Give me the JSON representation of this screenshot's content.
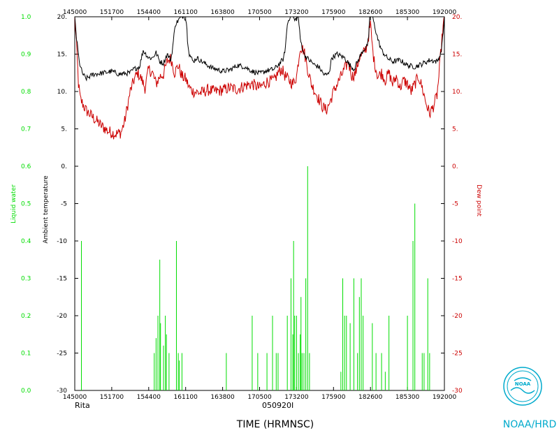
{
  "chart_data": {
    "type": "line",
    "storm": "Rita",
    "date": "050920I",
    "xlabel": "TIME (HRMNSC)",
    "credit": "NOAA/HRD",
    "logo_text": "NOAA",
    "x_ticks": [
      "145000",
      "151700",
      "154400",
      "161100",
      "163800",
      "170500",
      "173200",
      "175900",
      "182600",
      "185300",
      "192000"
    ],
    "xlim": [
      0,
      10
    ],
    "left_axis": {
      "label": "Liquid water",
      "color": "#00dd00",
      "ylim": [
        0.0,
        1.0
      ],
      "ticks": [
        "0.0",
        "0.1",
        "0.2",
        "0.3",
        "0.4",
        "0.5",
        "0.6",
        "0.7",
        "0.8",
        "0.9",
        "1.0"
      ]
    },
    "inner_left_axis": {
      "label": "Ambient temperature",
      "color": "#000000",
      "ylim": [
        -30,
        20
      ],
      "ticks": [
        "-30",
        "-25",
        "-20",
        "-15",
        "-10",
        "-5",
        "0.",
        "5.",
        "10.",
        "15.",
        "20."
      ]
    },
    "right_axis": {
      "label": "Dew point",
      "color": "#cc0000",
      "ylim": [
        -30,
        20
      ],
      "ticks": [
        "-30",
        "-25",
        "-20",
        "-15",
        "-10",
        "-5",
        "0.",
        "5.",
        "10.",
        "15.",
        "20."
      ]
    },
    "series": [
      {
        "name": "Ambient temperature",
        "color": "#000000",
        "points": [
          [
            0,
            20
          ],
          [
            0.05,
            17
          ],
          [
            0.12,
            14
          ],
          [
            0.2,
            12.5
          ],
          [
            0.3,
            11.7
          ],
          [
            0.5,
            12.3
          ],
          [
            0.8,
            12.5
          ],
          [
            1.0,
            12.7
          ],
          [
            1.2,
            12.3
          ],
          [
            1.5,
            12.5
          ],
          [
            1.6,
            13
          ],
          [
            1.75,
            13.3
          ],
          [
            1.85,
            15.5
          ],
          [
            2.0,
            14.5
          ],
          [
            2.1,
            14.5
          ],
          [
            2.2,
            15.2
          ],
          [
            2.3,
            14
          ],
          [
            2.4,
            13.8
          ],
          [
            2.5,
            15
          ],
          [
            2.6,
            14.2
          ],
          [
            2.65,
            16
          ],
          [
            2.72,
            19
          ],
          [
            2.85,
            19.8
          ],
          [
            2.95,
            20.3
          ],
          [
            3.02,
            19.3
          ],
          [
            3.05,
            17
          ],
          [
            3.1,
            15
          ],
          [
            3.2,
            14
          ],
          [
            3.3,
            14.5
          ],
          [
            3.5,
            13.8
          ],
          [
            3.7,
            13.2
          ],
          [
            4.0,
            12.7
          ],
          [
            4.2,
            12.9
          ],
          [
            4.4,
            13.5
          ],
          [
            4.6,
            13.3
          ],
          [
            4.8,
            12.7
          ],
          [
            5.0,
            12.4
          ],
          [
            5.2,
            12.8
          ],
          [
            5.4,
            13
          ],
          [
            5.55,
            13.8
          ],
          [
            5.65,
            14.4
          ],
          [
            5.7,
            16
          ],
          [
            5.75,
            19
          ],
          [
            5.85,
            20.5
          ],
          [
            5.95,
            19.5
          ],
          [
            6.05,
            20
          ],
          [
            6.1,
            17
          ],
          [
            6.2,
            15
          ],
          [
            6.3,
            14.4
          ],
          [
            6.5,
            13.5
          ],
          [
            6.6,
            13.3
          ],
          [
            6.75,
            12.2
          ],
          [
            6.85,
            12.3
          ],
          [
            6.9,
            13
          ],
          [
            6.95,
            14.5
          ],
          [
            7.1,
            15
          ],
          [
            7.3,
            14.5
          ],
          [
            7.45,
            13.5
          ],
          [
            7.55,
            13
          ],
          [
            7.7,
            14.5
          ],
          [
            7.8,
            15.5
          ],
          [
            7.9,
            16
          ],
          [
            7.95,
            17
          ],
          [
            7.98,
            20
          ],
          [
            8.03,
            20.6
          ],
          [
            8.1,
            19
          ],
          [
            8.2,
            17
          ],
          [
            8.3,
            15.5
          ],
          [
            8.45,
            14.5
          ],
          [
            8.6,
            14
          ],
          [
            8.8,
            14.2
          ],
          [
            9.0,
            13.5
          ],
          [
            9.2,
            13.3
          ],
          [
            9.4,
            13.7
          ],
          [
            9.6,
            14.2
          ],
          [
            9.8,
            14
          ],
          [
            9.9,
            15
          ],
          [
            9.95,
            17
          ],
          [
            10.0,
            20
          ]
        ]
      },
      {
        "name": "Dew point",
        "color": "#cc0000",
        "points": [
          [
            0,
            20
          ],
          [
            0.05,
            16
          ],
          [
            0.1,
            11
          ],
          [
            0.15,
            9
          ],
          [
            0.2,
            8.5
          ],
          [
            0.3,
            7.5
          ],
          [
            0.5,
            6.5
          ],
          [
            0.7,
            5.5
          ],
          [
            0.9,
            4.7
          ],
          [
            1.1,
            4.3
          ],
          [
            1.25,
            4.5
          ],
          [
            1.35,
            6
          ],
          [
            1.5,
            10
          ],
          [
            1.6,
            11.5
          ],
          [
            1.7,
            12.5
          ],
          [
            1.8,
            11.7
          ],
          [
            1.9,
            10.5
          ],
          [
            2.0,
            13
          ],
          [
            2.1,
            12.5
          ],
          [
            2.2,
            11
          ],
          [
            2.3,
            12
          ],
          [
            2.4,
            12.3
          ],
          [
            2.5,
            14
          ],
          [
            2.6,
            14.5
          ],
          [
            2.7,
            12.5
          ],
          [
            2.8,
            13.5
          ],
          [
            2.9,
            12
          ],
          [
            3.0,
            11.7
          ],
          [
            3.1,
            10.5
          ],
          [
            3.2,
            10
          ],
          [
            3.4,
            9.8
          ],
          [
            3.6,
            10.2
          ],
          [
            3.8,
            10
          ],
          [
            4.0,
            10.2
          ],
          [
            4.2,
            10.5
          ],
          [
            4.4,
            10.3
          ],
          [
            4.6,
            10.8
          ],
          [
            4.8,
            11
          ],
          [
            5.0,
            10.5
          ],
          [
            5.2,
            11.3
          ],
          [
            5.4,
            11.5
          ],
          [
            5.5,
            12.5
          ],
          [
            5.6,
            13
          ],
          [
            5.7,
            12
          ],
          [
            5.8,
            11.5
          ],
          [
            5.9,
            11
          ],
          [
            6.0,
            12
          ],
          [
            6.1,
            16
          ],
          [
            6.2,
            15.5
          ],
          [
            6.3,
            13
          ],
          [
            6.4,
            11
          ],
          [
            6.5,
            10
          ],
          [
            6.6,
            9
          ],
          [
            6.7,
            8
          ],
          [
            6.8,
            7.5
          ],
          [
            6.9,
            8.5
          ],
          [
            7.0,
            10
          ],
          [
            7.1,
            11
          ],
          [
            7.2,
            12
          ],
          [
            7.3,
            13
          ],
          [
            7.4,
            14
          ],
          [
            7.5,
            12
          ],
          [
            7.6,
            12.5
          ],
          [
            7.7,
            14.5
          ],
          [
            7.8,
            15
          ],
          [
            7.9,
            16
          ],
          [
            8.0,
            19
          ],
          [
            8.05,
            16
          ],
          [
            8.1,
            14
          ],
          [
            8.2,
            12
          ],
          [
            8.3,
            12.5
          ],
          [
            8.4,
            11.5
          ],
          [
            8.5,
            12.5
          ],
          [
            8.6,
            11
          ],
          [
            8.7,
            12
          ],
          [
            8.8,
            10.5
          ],
          [
            8.9,
            11.5
          ],
          [
            9.0,
            11
          ],
          [
            9.1,
            10
          ],
          [
            9.2,
            11
          ],
          [
            9.3,
            12
          ],
          [
            9.4,
            10.5
          ],
          [
            9.5,
            8.5
          ],
          [
            9.6,
            7
          ],
          [
            9.7,
            8
          ],
          [
            9.8,
            9.5
          ],
          [
            9.85,
            12
          ],
          [
            9.9,
            15
          ],
          [
            9.95,
            18
          ],
          [
            10.0,
            20
          ]
        ]
      },
      {
        "name": "Liquid water",
        "color": "#00dd00",
        "spikes": [
          [
            0.18,
            0.4
          ],
          [
            2.15,
            0.1
          ],
          [
            2.2,
            0.14
          ],
          [
            2.25,
            0.2
          ],
          [
            2.3,
            0.35
          ],
          [
            2.32,
            0.18
          ],
          [
            2.4,
            0.12
          ],
          [
            2.45,
            0.2
          ],
          [
            2.48,
            0.15
          ],
          [
            2.55,
            0.1
          ],
          [
            2.75,
            0.4
          ],
          [
            2.8,
            0.1
          ],
          [
            2.83,
            0.08
          ],
          [
            2.9,
            0.1
          ],
          [
            4.1,
            0.1
          ],
          [
            4.8,
            0.2
          ],
          [
            4.95,
            0.1
          ],
          [
            5.2,
            0.1
          ],
          [
            5.35,
            0.2
          ],
          [
            5.45,
            0.1
          ],
          [
            5.5,
            0.1
          ],
          [
            5.75,
            0.2
          ],
          [
            5.85,
            0.3
          ],
          [
            5.9,
            0.15
          ],
          [
            5.92,
            0.4
          ],
          [
            5.95,
            0.2
          ],
          [
            6.0,
            0.2
          ],
          [
            6.05,
            0.1
          ],
          [
            6.1,
            0.15
          ],
          [
            6.12,
            0.25
          ],
          [
            6.15,
            0.1
          ],
          [
            6.2,
            0.1
          ],
          [
            6.25,
            0.3
          ],
          [
            6.3,
            0.6
          ],
          [
            6.35,
            0.1
          ],
          [
            7.2,
            0.05
          ],
          [
            7.25,
            0.3
          ],
          [
            7.3,
            0.2
          ],
          [
            7.35,
            0.2
          ],
          [
            7.45,
            0.18
          ],
          [
            7.55,
            0.3
          ],
          [
            7.65,
            0.1
          ],
          [
            7.7,
            0.25
          ],
          [
            7.75,
            0.3
          ],
          [
            7.8,
            0.2
          ],
          [
            8.05,
            0.18
          ],
          [
            8.15,
            0.1
          ],
          [
            8.3,
            0.1
          ],
          [
            8.4,
            0.05
          ],
          [
            8.5,
            0.2
          ],
          [
            9.0,
            0.2
          ],
          [
            9.15,
            0.4
          ],
          [
            9.2,
            0.5
          ],
          [
            9.4,
            0.1
          ],
          [
            9.45,
            0.1
          ],
          [
            9.55,
            0.3
          ],
          [
            9.6,
            0.1
          ]
        ]
      }
    ]
  }
}
